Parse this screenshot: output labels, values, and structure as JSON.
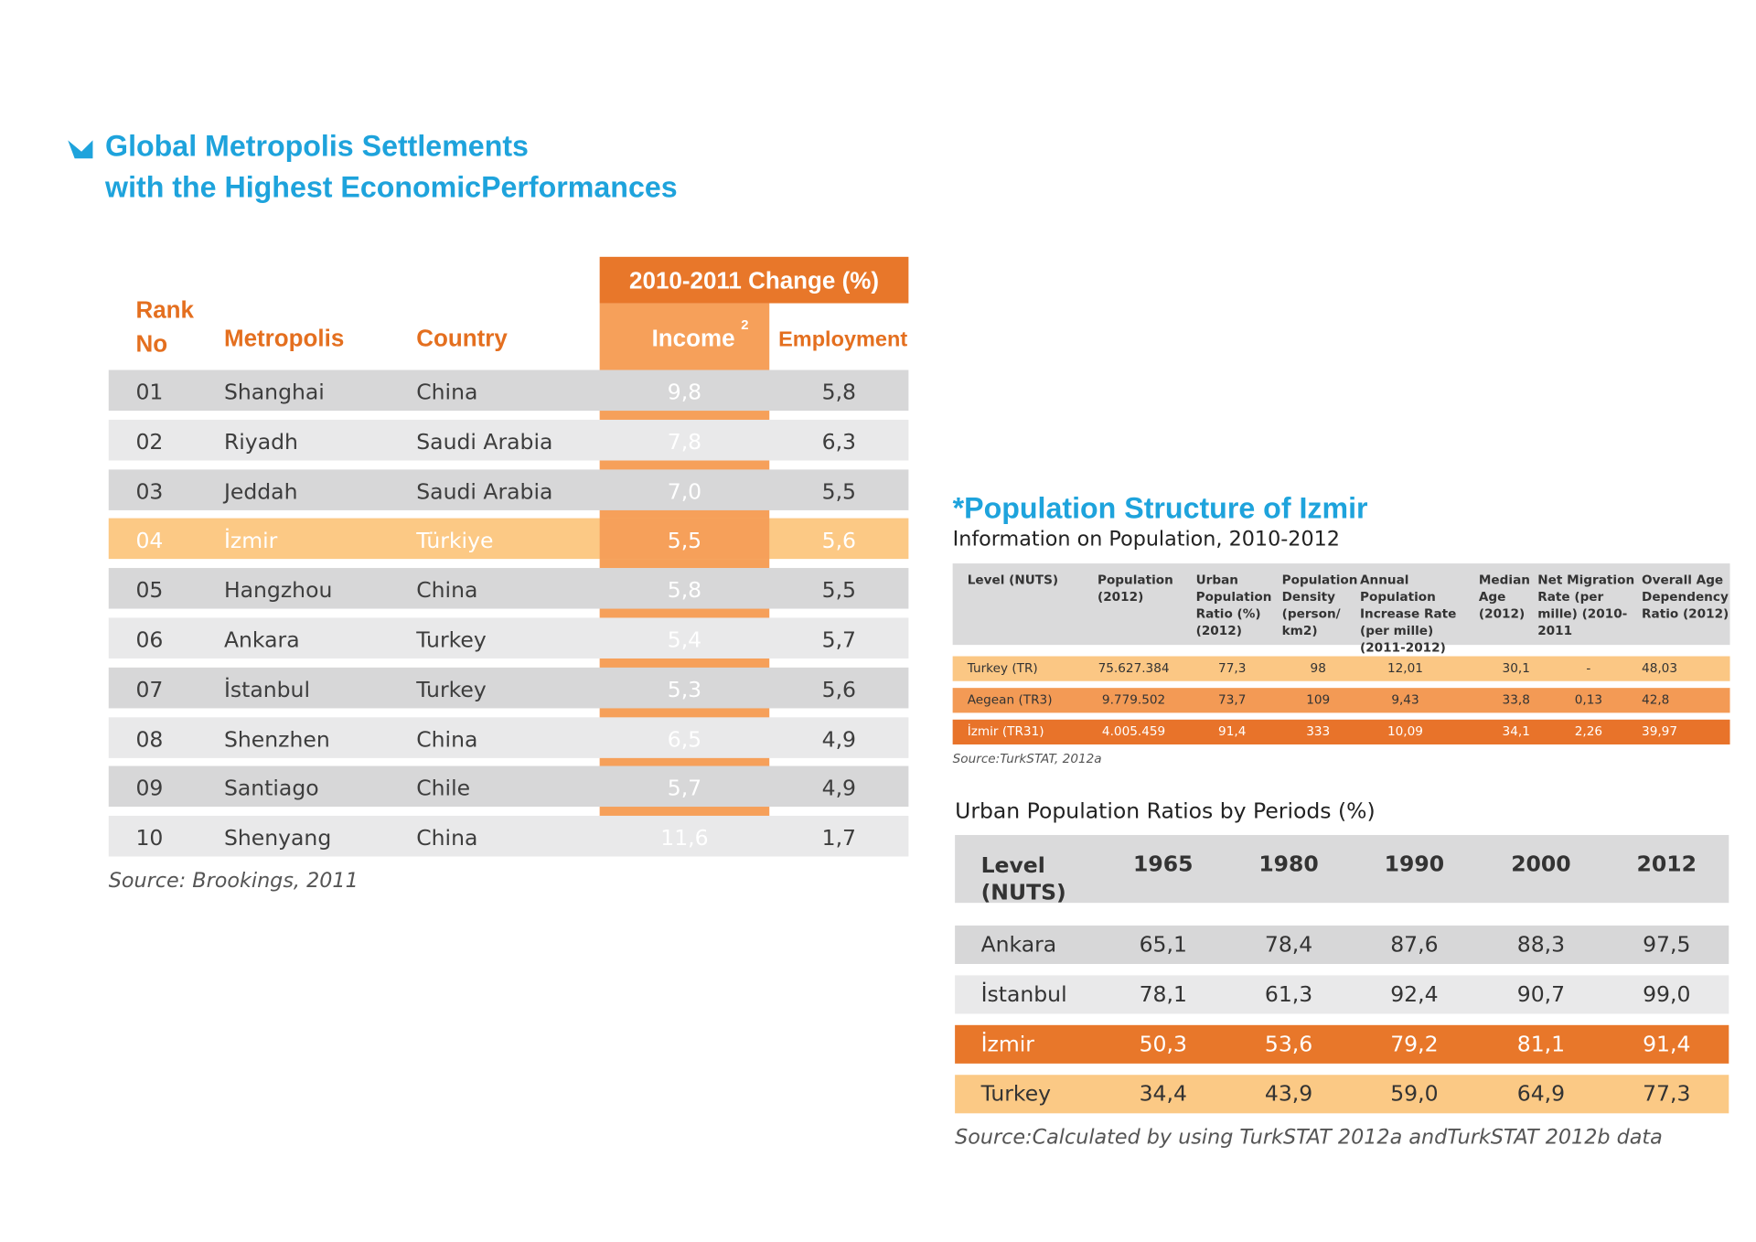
{
  "title_lines": [
    "Global Metropolis Settlements",
    "with the Highest EconomicPerformances"
  ],
  "metropolis_table": {
    "group_header": "2010-2011 Change (%)",
    "columns": [
      "Rank No",
      "Metropolis",
      "Country",
      "Income",
      "Employment"
    ],
    "income_note": "2",
    "rows": [
      [
        "01",
        "Shanghai",
        "China",
        "9,8",
        "5,8"
      ],
      [
        "02",
        "Riyadh",
        "Saudi Arabia",
        "7,8",
        "6,3"
      ],
      [
        "03",
        "Jeddah",
        "Saudi Arabia",
        "7,0",
        "5,5"
      ],
      [
        "04",
        "İzmir",
        "Türkiye",
        "5,5",
        "5,6"
      ],
      [
        "05",
        "Hangzhou",
        "China",
        "5,8",
        "5,5"
      ],
      [
        "06",
        "Ankara",
        "Turkey",
        "5,4",
        "5,7"
      ],
      [
        "07",
        "İstanbul",
        "Turkey",
        "5,3",
        "5,6"
      ],
      [
        "08",
        "Shenzhen",
        "China",
        "6,5",
        "4,9"
      ],
      [
        "09",
        "Santiago",
        "Chile",
        "5,7",
        "4,9"
      ],
      [
        "10",
        "Shenyang",
        "China",
        "11,6",
        "1,7"
      ]
    ],
    "source": "Source: Brookings, 2011"
  },
  "population_table": {
    "title": "*Population Structure of Izmir",
    "subtitle": "Information on Population, 2010-2012",
    "columns": [
      "Level (NUTS)",
      "Population (2012)",
      "Urban Population Ratio (%) (2012)",
      "Population Density (person/ km2)",
      "Annual Population Increase Rate (per mille) (2011-2012)",
      "Median Age (2012)",
      "Net Migration Rate (per mille) (2010-2011",
      "Overall Age Dependency Ratio (2012)"
    ],
    "rows": [
      [
        "Turkey (TR)",
        "75.627.384",
        "77,3",
        "98",
        "12,01",
        "30,1",
        "-",
        "48,03"
      ],
      [
        "Aegean (TR3)",
        "9.779.502",
        "73,7",
        "109",
        "9,43",
        "33,8",
        "0,13",
        "42,8"
      ],
      [
        "İzmir (TR31)",
        "4.005.459",
        "91,4",
        "333",
        "10,09",
        "34,1",
        "2,26",
        "39,97"
      ]
    ],
    "source": "Source:TurkSTAT, 2012a"
  },
  "urban_table": {
    "title": "Urban Population Ratios by Periods (%)",
    "columns": [
      "Level (NUTS)",
      "1965",
      "1980",
      "1990",
      "2000",
      "2012"
    ],
    "rows": [
      [
        "Ankara",
        "65,1",
        "78,4",
        "87,6",
        "88,3",
        "97,5"
      ],
      [
        "İstanbul",
        "78,1",
        "61,3",
        "92,4",
        "90,7",
        "99,0"
      ],
      [
        "İzmir",
        "50,3",
        "53,6",
        "79,2",
        "81,1",
        "91,4"
      ],
      [
        "Turkey",
        "34,4",
        "43,9",
        "59,0",
        "64,9",
        "77,3"
      ]
    ],
    "source": "Source:Calculated by using TurkSTAT 2012a andTurkSTAT 2012b data"
  }
}
